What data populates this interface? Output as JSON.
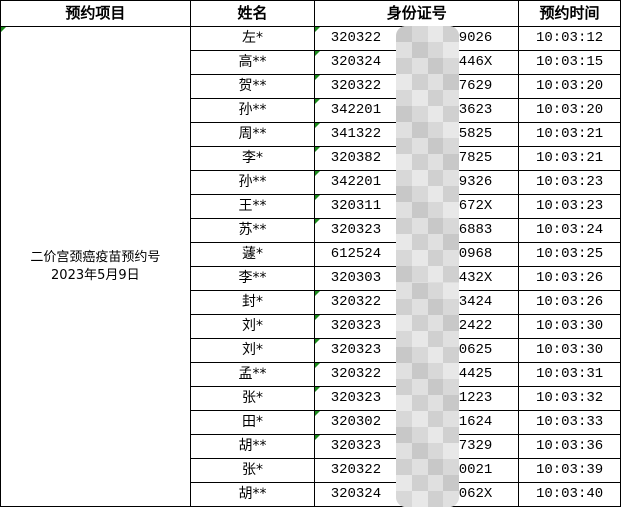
{
  "headers": [
    "预约项目",
    "姓名",
    "身份证号",
    "预约时间"
  ],
  "project": {
    "line1": "二价宫颈癌疫苗预约号",
    "line2": "2023年5月9日"
  },
  "rows": [
    {
      "name": "左*",
      "id_prefix": "320322",
      "id_suffix": "9026",
      "time": "10:03:12"
    },
    {
      "name": "高**",
      "id_prefix": "320324",
      "id_suffix": "446X",
      "time": "10:03:15"
    },
    {
      "name": "贺**",
      "id_prefix": "320322",
      "id_suffix": "7629",
      "time": "10:03:20"
    },
    {
      "name": "孙**",
      "id_prefix": "342201",
      "id_suffix": "3623",
      "time": "10:03:20"
    },
    {
      "name": "周**",
      "id_prefix": "341322",
      "id_suffix": "5825",
      "time": "10:03:21"
    },
    {
      "name": "李*",
      "id_prefix": "320382",
      "id_suffix": "7825",
      "time": "10:03:21"
    },
    {
      "name": "孙**",
      "id_prefix": "342201",
      "id_suffix": "9326",
      "time": "10:03:23"
    },
    {
      "name": "王**",
      "id_prefix": "320311",
      "id_suffix": "672X",
      "time": "10:03:23"
    },
    {
      "name": "苏**",
      "id_prefix": "320323",
      "id_suffix": "6883",
      "time": "10:03:24"
    },
    {
      "name": "蘧*",
      "id_prefix": "612524",
      "id_suffix": "0968",
      "time": "10:03:25"
    },
    {
      "name": "李**",
      "id_prefix": "320303",
      "id_suffix": "432X",
      "time": "10:03:26"
    },
    {
      "name": "封*",
      "id_prefix": "320322",
      "id_suffix": "3424",
      "time": "10:03:26"
    },
    {
      "name": "刘*",
      "id_prefix": "320323",
      "id_suffix": "2422",
      "time": "10:03:30"
    },
    {
      "name": "刘*",
      "id_prefix": "320323",
      "id_suffix": "0625",
      "time": "10:03:30"
    },
    {
      "name": "孟**",
      "id_prefix": "320322",
      "id_suffix": "4425",
      "time": "10:03:31"
    },
    {
      "name": "张*",
      "id_prefix": "320323",
      "id_suffix": "1223",
      "time": "10:03:32"
    },
    {
      "name": "田*",
      "id_prefix": "320302",
      "id_suffix": "1624",
      "time": "10:03:33"
    },
    {
      "name": "胡**",
      "id_prefix": "320323",
      "id_suffix": "7329",
      "time": "10:03:36"
    },
    {
      "name": "张*",
      "id_prefix": "320322",
      "id_suffix": "0021",
      "time": "10:03:39"
    },
    {
      "name": "胡**",
      "id_prefix": "320324",
      "id_suffix": "062X",
      "time": "10:03:40"
    }
  ]
}
